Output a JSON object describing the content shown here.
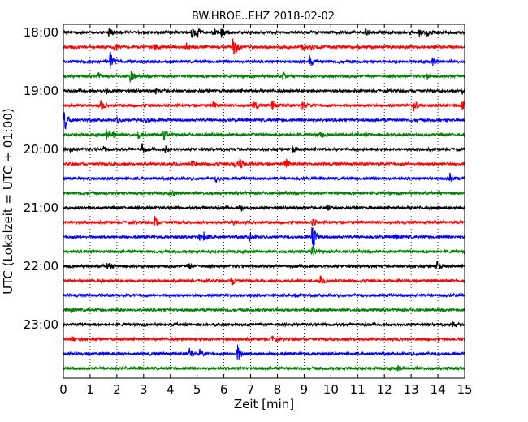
{
  "chart_data": {
    "type": "line",
    "title": "BW.HROE..EHZ 2018-02-02",
    "xlabel": "Zeit  [min]",
    "ylabel": "UTC (Lokalzeit = UTC + 01:00)",
    "xlim": [
      0,
      15
    ],
    "x_ticks": [
      0,
      1,
      2,
      3,
      4,
      5,
      6,
      7,
      8,
      9,
      10,
      11,
      12,
      13,
      14,
      15
    ],
    "x_tick_labels": [
      "0",
      "1",
      "2",
      "3",
      "4",
      "5",
      "6",
      "7",
      "8",
      "9",
      "10",
      "11",
      "12",
      "13",
      "14",
      "15"
    ],
    "y_tick_labels": [
      "18:00",
      "19:00",
      "20:00",
      "21:00",
      "22:00",
      "23:00"
    ],
    "trace_interval_min": 15,
    "grid": true,
    "trace_colors": [
      "#000000",
      "#ff0000",
      "#0000ff",
      "#008000"
    ],
    "traces": [
      {
        "label": "18:00",
        "color": "#000000",
        "events": [
          {
            "x": 1.7,
            "a": 0.45
          },
          {
            "x": 4.8,
            "a": 0.55
          },
          {
            "x": 5.0,
            "a": 0.45
          },
          {
            "x": 5.6,
            "a": 0.45
          },
          {
            "x": 5.9,
            "a": 0.5
          },
          {
            "x": 11.3,
            "a": 0.4
          },
          {
            "x": 13.3,
            "a": 0.35
          },
          {
            "x": 13.6,
            "a": 0.3
          }
        ]
      },
      {
        "label": "",
        "color": "#ff0000",
        "events": [
          {
            "x": 1.9,
            "a": 0.35
          },
          {
            "x": 3.4,
            "a": 0.25
          },
          {
            "x": 4.6,
            "a": 0.4
          },
          {
            "x": 6.35,
            "a": 1.55
          },
          {
            "x": 8.9,
            "a": 0.25
          },
          {
            "x": 9.2,
            "a": 0.3
          }
        ]
      },
      {
        "label": "",
        "color": "#0000ff",
        "events": [
          {
            "x": 1.75,
            "a": 1.0
          },
          {
            "x": 9.2,
            "a": 0.6
          },
          {
            "x": 13.8,
            "a": 0.35
          }
        ]
      },
      {
        "label": "",
        "color": "#008000",
        "events": [
          {
            "x": 1.3,
            "a": 0.3
          },
          {
            "x": 2.5,
            "a": 0.65
          },
          {
            "x": 8.2,
            "a": 0.3
          },
          {
            "x": 13.6,
            "a": 0.3
          }
        ]
      },
      {
        "label": "19:00",
        "color": "#000000",
        "events": [
          {
            "x": 1.6,
            "a": 0.3
          },
          {
            "x": 3.45,
            "a": 0.25
          },
          {
            "x": 14.9,
            "a": 0.3
          }
        ]
      },
      {
        "label": "",
        "color": "#ff0000",
        "events": [
          {
            "x": 1.4,
            "a": 0.4
          },
          {
            "x": 5.6,
            "a": 0.3
          },
          {
            "x": 7.1,
            "a": 0.55
          },
          {
            "x": 7.8,
            "a": 0.5
          },
          {
            "x": 8.9,
            "a": 0.6
          },
          {
            "x": 13.1,
            "a": 0.6
          },
          {
            "x": 14.9,
            "a": 0.4
          }
        ]
      },
      {
        "label": "",
        "color": "#0000ff",
        "events": [
          {
            "x": 0.05,
            "a": 1.2
          },
          {
            "x": 2.0,
            "a": 0.3
          },
          {
            "x": 3.1,
            "a": 0.25
          }
        ]
      },
      {
        "label": "",
        "color": "#008000",
        "events": [
          {
            "x": 1.6,
            "a": 0.45
          },
          {
            "x": 1.85,
            "a": 0.4
          },
          {
            "x": 2.8,
            "a": 0.35
          },
          {
            "x": 3.75,
            "a": 0.45
          },
          {
            "x": 9.6,
            "a": 0.3
          }
        ]
      },
      {
        "label": "20:00",
        "color": "#000000",
        "events": [
          {
            "x": 0.25,
            "a": 0.25
          },
          {
            "x": 1.5,
            "a": 0.25
          },
          {
            "x": 2.95,
            "a": 0.45
          },
          {
            "x": 3.8,
            "a": 0.3
          },
          {
            "x": 8.55,
            "a": 0.3
          }
        ]
      },
      {
        "label": "",
        "color": "#ff0000",
        "events": [
          {
            "x": 4.8,
            "a": 0.3
          },
          {
            "x": 6.4,
            "a": 0.35
          },
          {
            "x": 6.6,
            "a": 0.45
          },
          {
            "x": 8.3,
            "a": 0.5
          }
        ]
      },
      {
        "label": "",
        "color": "#0000ff",
        "events": [
          {
            "x": 5.7,
            "a": 0.3
          },
          {
            "x": 14.45,
            "a": 0.45
          }
        ]
      },
      {
        "label": "",
        "color": "#008000",
        "events": [
          {
            "x": 4.1,
            "a": 0.2
          }
        ]
      },
      {
        "label": "21:00",
        "color": "#000000",
        "events": [
          {
            "x": 6.6,
            "a": 0.35
          },
          {
            "x": 9.85,
            "a": 0.35
          }
        ]
      },
      {
        "label": "",
        "color": "#ff0000",
        "events": [
          {
            "x": 3.4,
            "a": 0.65
          },
          {
            "x": 6.3,
            "a": 0.3
          },
          {
            "x": 9.3,
            "a": 0.35
          }
        ]
      },
      {
        "label": "",
        "color": "#0000ff",
        "events": [
          {
            "x": 5.05,
            "a": 0.35
          },
          {
            "x": 5.25,
            "a": 0.45
          },
          {
            "x": 6.95,
            "a": 0.5
          },
          {
            "x": 9.3,
            "a": 1.5
          },
          {
            "x": 12.4,
            "a": 0.3
          }
        ]
      },
      {
        "label": "",
        "color": "#008000",
        "events": [
          {
            "x": 9.3,
            "a": 0.6
          }
        ]
      },
      {
        "label": "22:00",
        "color": "#000000",
        "events": [
          {
            "x": 1.65,
            "a": 0.4
          },
          {
            "x": 4.7,
            "a": 0.25
          },
          {
            "x": 13.95,
            "a": 0.55
          }
        ]
      },
      {
        "label": "",
        "color": "#ff0000",
        "events": [
          {
            "x": 6.3,
            "a": 0.45
          },
          {
            "x": 9.6,
            "a": 0.4
          }
        ]
      },
      {
        "label": "",
        "color": "#0000ff",
        "events": [
          {
            "x": 8.65,
            "a": 0.3
          }
        ]
      },
      {
        "label": "",
        "color": "#008000",
        "events": [
          {
            "x": 0.3,
            "a": 0.2
          }
        ]
      },
      {
        "label": "23:00",
        "color": "#000000",
        "events": [
          {
            "x": 14.55,
            "a": 0.3
          }
        ]
      },
      {
        "label": "",
        "color": "#ff0000",
        "events": [
          {
            "x": 0.3,
            "a": 0.3
          },
          {
            "x": 7.8,
            "a": 0.25
          }
        ]
      },
      {
        "label": "",
        "color": "#0000ff",
        "events": [
          {
            "x": 4.7,
            "a": 0.65
          },
          {
            "x": 5.1,
            "a": 0.35
          },
          {
            "x": 6.5,
            "a": 1.0
          }
        ]
      },
      {
        "label": "",
        "color": "#008000",
        "events": [
          {
            "x": 12.5,
            "a": 0.25
          }
        ]
      }
    ]
  }
}
